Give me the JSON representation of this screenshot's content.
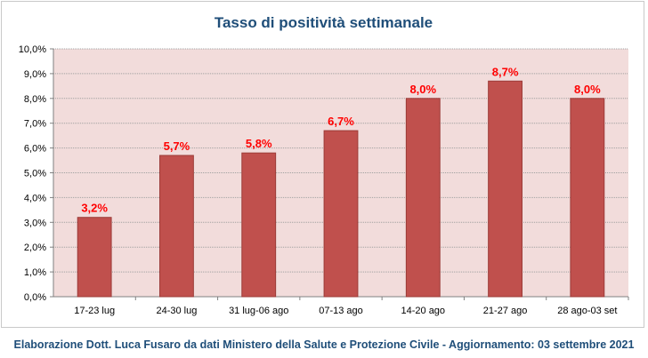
{
  "chart_data": {
    "type": "bar",
    "title": "Tasso di positività settimanale",
    "categories": [
      "17-23 lug",
      "24-30 lug",
      "31 lug-06 ago",
      "07-13 ago",
      "14-20 ago",
      "21-27 ago",
      "28 ago-03 set"
    ],
    "values": [
      3.2,
      5.7,
      5.8,
      6.7,
      8.0,
      8.7,
      8.0
    ],
    "value_labels": [
      "3,2%",
      "5,7%",
      "5,8%",
      "6,7%",
      "8,0%",
      "8,7%",
      "8,0%"
    ],
    "y_ticks": [
      "0,0%",
      "1,0%",
      "2,0%",
      "3,0%",
      "4,0%",
      "5,0%",
      "6,0%",
      "7,0%",
      "8,0%",
      "9,0%",
      "10,0%"
    ],
    "ylim": [
      0,
      10
    ],
    "ytick_step": 1,
    "grid": true,
    "legend": false,
    "colors": {
      "bar": "#c0504d",
      "bar_border": "#9c3b38",
      "plot_bg": "#f2dcdb",
      "grid": "#a0a0a0",
      "value_label": "#ff0000",
      "title": "#1f4e79"
    }
  },
  "footer": {
    "caption": "Elaborazione Dott. Luca Fusaro da dati Ministero della Salute e Protezione Civile - Aggiornamento: 03 settembre 2021"
  }
}
